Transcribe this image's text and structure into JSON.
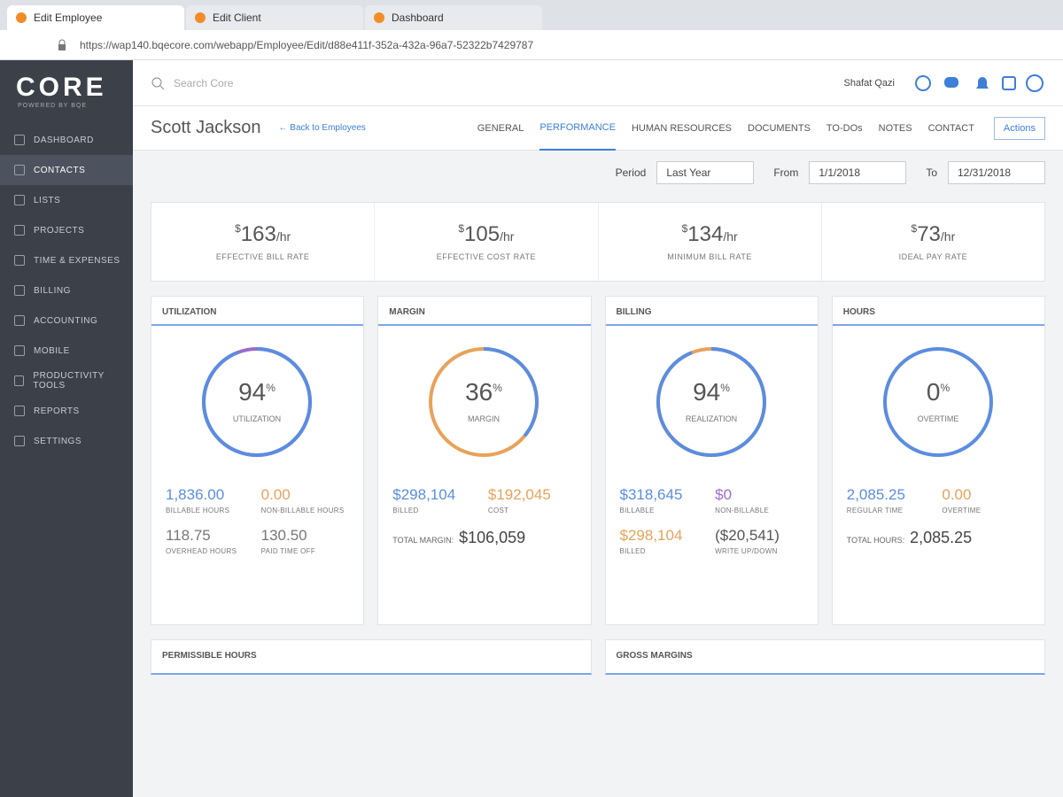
{
  "browser": {
    "tabs": [
      "Edit Employee",
      "Edit Client",
      "Dashboard"
    ],
    "url": "https://wap140.bqecore.com/webapp/Employee/Edit/d88e411f-352a-432a-96a7-52322b7429787"
  },
  "sidebar": {
    "logo": "CORE",
    "tagline": "POWERED BY BQE",
    "items": [
      "DASHBOARD",
      "CONTACTS",
      "LISTS",
      "PROJECTS",
      "TIME & EXPENSES",
      "BILLING",
      "ACCOUNTING",
      "MOBILE",
      "PRODUCTIVITY TOOLS",
      "REPORTS",
      "SETTINGS"
    ]
  },
  "header": {
    "search_placeholder": "Search Core",
    "user": "Shafat Qazi"
  },
  "employee": {
    "name": "Scott Jackson",
    "back_link": "← Back to Employees",
    "tabs": [
      "GENERAL",
      "PERFORMANCE",
      "HUMAN RESOURCES",
      "DOCUMENTS",
      "TO-DOs",
      "NOTES",
      "CONTACT"
    ],
    "actions": "Actions"
  },
  "filter": {
    "period_label": "Period",
    "period": "Last Year",
    "from_label": "From",
    "from": "1/1/2018",
    "to_label": "To",
    "to": "12/31/2018"
  },
  "rates": [
    {
      "currency": "$",
      "value": 163,
      "unit": "/hr",
      "label": "EFFECTIVE BILL RATE"
    },
    {
      "currency": "$",
      "value": 105,
      "unit": "/hr",
      "label": "EFFECTIVE COST RATE"
    },
    {
      "currency": "$",
      "value": 134,
      "unit": "/hr",
      "label": "MINIMUM BILL RATE"
    },
    {
      "currency": "$",
      "value": 73,
      "unit": "/hr",
      "label": "IDEAL PAY RATE"
    }
  ],
  "cards": [
    {
      "title": "UTILIZATION",
      "percent": 94,
      "percent_unit": "%",
      "center_label": "UTILIZATION",
      "arc_color": "#5b8de0",
      "rest_color": "#9b6bc9",
      "stats": [
        {
          "value": "1,836.00",
          "label": "BILLABLE HOURS",
          "color": "#5b8de0"
        },
        {
          "value": "0.00",
          "label": "NON-BILLABLE HOURS",
          "color": "#e8a25a"
        },
        {
          "value": "118.75",
          "label": "OVERHEAD HOURS",
          "color": "#777777"
        },
        {
          "value": "130.50",
          "label": "PAID TIME OFF",
          "color": "#777777"
        }
      ]
    },
    {
      "title": "MARGIN",
      "percent": 36,
      "percent_unit": "%",
      "center_label": "MARGIN",
      "arc_color": "#5b8de0",
      "rest_color": "#e8a25a",
      "stats": [
        {
          "value": "$298,104",
          "label": "BILLED",
          "color": "#5b8de0"
        },
        {
          "value": "$192,045",
          "label": "COST",
          "color": "#e8a25a"
        }
      ],
      "total_label": "TOTAL MARGIN:",
      "total": "$106,059"
    },
    {
      "title": "BILLING",
      "percent": 94,
      "percent_unit": "%",
      "center_label": "REALIZATION",
      "arc_color": "#5b8de0",
      "rest_color": "#e8a25a",
      "stats": [
        {
          "value": "$318,645",
          "label": "BILLABLE",
          "color": "#5b8de0"
        },
        {
          "value": "$0",
          "label": "NON-BILLABLE",
          "color": "#9b6bc9"
        },
        {
          "value": "$298,104",
          "label": "BILLED",
          "color": "#e8a25a"
        },
        {
          "value": "($20,541)",
          "label": "WRITE UP/DOWN",
          "color": "#555555"
        }
      ]
    },
    {
      "title": "HOURS",
      "percent": 0,
      "percent_unit": "%",
      "center_label": "OVERTIME",
      "arc_color": "#e8a25a",
      "rest_color": "#5b8de0",
      "stats": [
        {
          "value": "2,085.25",
          "label": "REGULAR TIME",
          "color": "#5b8de0"
        },
        {
          "value": "0.00",
          "label": "OVERTIME",
          "color": "#e8a25a"
        }
      ],
      "total_label": "TOTAL HOURS:",
      "total": "2,085.25"
    }
  ],
  "sections": [
    "PERMISSIBLE HOURS",
    "GROSS MARGINS"
  ]
}
